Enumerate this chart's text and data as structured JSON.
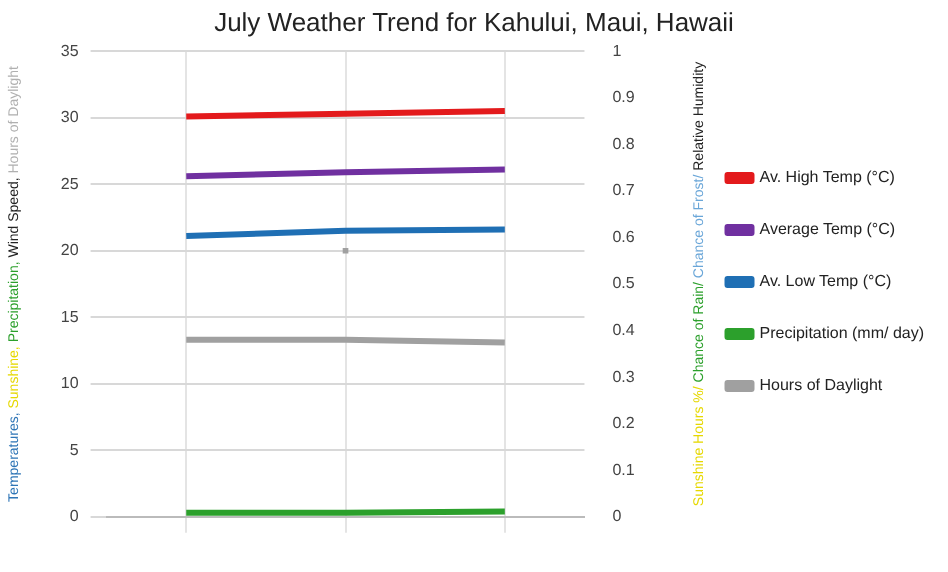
{
  "chart_data": {
    "type": "line",
    "title": "July Weather Trend for Kahului, Maui, Hawaii",
    "ylabel": "Temperatures, Sunshine, Precipitation, Wind Speed, Hours of Daylight",
    "y2label": "Sunshine Hours %/ Chance of Rain/ Chance of Frost/ Relative Humidity",
    "categories": [
      null,
      null,
      null
    ],
    "series": [
      {
        "name": "Av. High Temp (°C)",
        "color": "#e31a1c",
        "values": [
          30.1,
          30.3,
          30.5
        ]
      },
      {
        "name": "Average Temp (°C)",
        "color": "#7030a0",
        "values": [
          25.6,
          25.9,
          26.1
        ]
      },
      {
        "name": "Av. Low Temp (°C)",
        "color": "#1f6fb4",
        "values": [
          21.1,
          21.5,
          21.6
        ]
      },
      {
        "name": "Precipitation (mm/ day)",
        "color": "#2ca02c",
        "values": [
          0.3,
          0.3,
          0.4
        ]
      },
      {
        "name": "Hours of Daylight",
        "color": "#a0a0a0",
        "values": [
          13.3,
          13.3,
          13.1
        ]
      },
      {
        "type": "scatter",
        "color": "#a0a0a0",
        "marker": "square",
        "values": [
          null,
          20,
          null
        ]
      }
    ],
    "ylim": [
      0,
      35
    ],
    "yticks": [
      0,
      5,
      10,
      15,
      20,
      25,
      30,
      35
    ],
    "y2lim": [
      0,
      1
    ],
    "y2ticks": [
      0,
      0.1,
      0.2,
      0.3,
      0.4,
      0.5,
      0.6,
      0.7,
      0.8,
      0.9,
      1
    ],
    "grid": true,
    "legend": "right",
    "marker": "none"
  }
}
